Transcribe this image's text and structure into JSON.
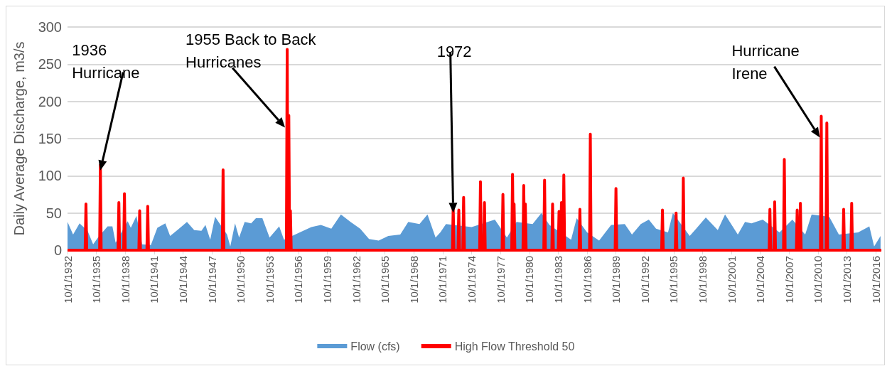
{
  "chart_data": {
    "type": "area",
    "ylabel": "Daily Average Discharge, m3/s",
    "ylim": [
      0,
      300
    ],
    "yticks": [
      0,
      50,
      100,
      150,
      200,
      250,
      300
    ],
    "grid": "y",
    "legend": "bottom",
    "marker": "none",
    "xlim": [
      "1932-10",
      "2017-05"
    ],
    "xticks": [
      {
        "value": "1932-10-01",
        "label": "10/1/1932"
      },
      {
        "value": "1935-10-01",
        "label": "10/1/1935"
      },
      {
        "value": "1938-10-01",
        "label": "10/1/1938"
      },
      {
        "value": "1941-10-01",
        "label": "10/1/1941"
      },
      {
        "value": "1944-10-01",
        "label": "10/1/1944"
      },
      {
        "value": "1947-10-01",
        "label": "10/1/1947"
      },
      {
        "value": "1950-10-01",
        "label": "10/1/1950"
      },
      {
        "value": "1953-10-01",
        "label": "10/1/1953"
      },
      {
        "value": "1956-10-01",
        "label": "10/1/1956"
      },
      {
        "value": "1959-10-01",
        "label": "10/1/1959"
      },
      {
        "value": "1962-10-01",
        "label": "10/1/1962"
      },
      {
        "value": "1965-10-01",
        "label": "10/1/1965"
      },
      {
        "value": "1968-10-01",
        "label": "10/1/1968"
      },
      {
        "value": "1971-10-01",
        "label": "10/1/1971"
      },
      {
        "value": "1974-10-01",
        "label": "10/1/1974"
      },
      {
        "value": "1977-10-01",
        "label": "10/1/1977"
      },
      {
        "value": "1980-10-01",
        "label": "10/1/1980"
      },
      {
        "value": "1983-10-01",
        "label": "10/1/1983"
      },
      {
        "value": "1986-10-01",
        "label": "10/1/1986"
      },
      {
        "value": "1989-10-01",
        "label": "10/1/1989"
      },
      {
        "value": "1992-10-01",
        "label": "10/1/1992"
      },
      {
        "value": "1995-10-01",
        "label": "10/1/1995"
      },
      {
        "value": "1998-10-01",
        "label": "10/1/1998"
      },
      {
        "value": "2001-10-01",
        "label": "10/1/2001"
      },
      {
        "value": "2004-10-01",
        "label": "10/1/2004"
      },
      {
        "value": "2007-10-01",
        "label": "10/1/2007"
      },
      {
        "value": "2010-10-01",
        "label": "10/1/2010"
      },
      {
        "value": "2013-10-01",
        "label": "10/1/2013"
      },
      {
        "value": "2016-10-01",
        "label": "10/1/2016"
      }
    ],
    "series": [
      {
        "name": "Flow (cfs)",
        "color": "#5b9bd5",
        "x": [
          "1932-10",
          "1933-05",
          "1934-01",
          "1934-11",
          "1935-06",
          "1935-12",
          "1936-12",
          "1937-06",
          "1937-10",
          "1939-01",
          "1939-05",
          "1939-12",
          "1940-07",
          "1941-06",
          "1942-02",
          "1942-12",
          "1943-06",
          "1944-03",
          "1945-03",
          "1945-12",
          "1946-09",
          "1947-02",
          "1947-08",
          "1948-02",
          "1949-05",
          "1949-09",
          "1950-03",
          "1950-08",
          "1951-03",
          "1951-11",
          "1952-05",
          "1953-01",
          "1953-10",
          "1954-10",
          "1955-04",
          "1956-02",
          "1957-02",
          "1958-02",
          "1959-02",
          "1960-03",
          "1961-03",
          "1962-03",
          "1963-03",
          "1964-02",
          "1965-02",
          "1966-02",
          "1967-05",
          "1968-03",
          "1969-05",
          "1970-03",
          "1971-01",
          "1971-07",
          "1972-02",
          "1974-10",
          "1977-03",
          "1978-06",
          "1979-06",
          "1981-02",
          "1982-01",
          "1982-11",
          "1985-02",
          "1985-09",
          "1986-10",
          "1988-01",
          "1988-11",
          "1989-04",
          "1990-09",
          "1991-06",
          "1992-05",
          "1993-03",
          "1993-12",
          "1995-03",
          "1995-09",
          "1997-06",
          "1998-02",
          "1999-02",
          "2000-05",
          "2001-02",
          "2002-06",
          "2003-03",
          "2003-11",
          "2005-01",
          "2006-10",
          "2008-02",
          "2009-06",
          "2010-02",
          "2011-12",
          "2012-12",
          "2014-12",
          "2016-02",
          "2016-08",
          "2017-04"
        ],
        "values": [
          38,
          21,
          36,
          26,
          8,
          17,
          32,
          32,
          10,
          39,
          30,
          46,
          8,
          7,
          30,
          36,
          19,
          27,
          38,
          27,
          26,
          34,
          14,
          45,
          21,
          5,
          36,
          17,
          38,
          36,
          43,
          43,
          17,
          32,
          14,
          19,
          25,
          31,
          34,
          29,
          48,
          38,
          29,
          15,
          13,
          19,
          21,
          38,
          35,
          48,
          17,
          24,
          35,
          31,
          41,
          17,
          38,
          35,
          50,
          34,
          14,
          43,
          24,
          13,
          27,
          34,
          35,
          21,
          35,
          41,
          29,
          24,
          50,
          19,
          29,
          44,
          27,
          48,
          21,
          38,
          36,
          41,
          24,
          41,
          21,
          48,
          45,
          21,
          24,
          32,
          5,
          19
        ]
      },
      {
        "name": "High Flow Threshold 50",
        "type": "line",
        "color": "#ff0000",
        "x": [
          "1932-10",
          "1934-08",
          "1934-09",
          "1934-10",
          "1936-02",
          "1936-03",
          "1936-04",
          "1938-01",
          "1938-02",
          "1938-03",
          "1938-08",
          "1938-09",
          "1938-10",
          "1940-03",
          "1940-04",
          "1940-05",
          "1941-01",
          "1941-02",
          "1941-03",
          "1948-11",
          "1948-12",
          "1949-01",
          "1955-07",
          "1955-08",
          "1955-09",
          "1955-10",
          "1955-11",
          "1955-12",
          "1956-01",
          "1972-10",
          "1972-11",
          "1972-12",
          "1973-05",
          "1973-06",
          "1973-07",
          "1973-11",
          "1973-12",
          "1974-01",
          "1975-08",
          "1975-09",
          "1975-10",
          "1976-01",
          "1976-02",
          "1976-03",
          "1977-12",
          "1978-01",
          "1978-02",
          "1978-12",
          "1979-01",
          "1979-02",
          "1979-03",
          "1979-04",
          "1980-02",
          "1980-03",
          "1980-04",
          "1980-05",
          "1980-06",
          "1982-04",
          "1982-05",
          "1982-06",
          "1983-02",
          "1983-03",
          "1983-04",
          "1983-10",
          "1983-11",
          "1983-12",
          "1984-01",
          "1984-02",
          "1984-03",
          "1984-04",
          "1984-05",
          "1984-06",
          "1985-12",
          "1986-01",
          "1986-02",
          "1987-01",
          "1987-02",
          "1987-03",
          "1989-09",
          "1989-10",
          "1989-11",
          "1994-07",
          "1994-08",
          "1994-09",
          "1995-12",
          "1996-01",
          "1996-02",
          "1996-09",
          "1996-10",
          "1996-11",
          "2005-09",
          "2005-10",
          "2005-11",
          "2006-03",
          "2006-04",
          "2006-05",
          "2007-03",
          "2007-04",
          "2007-05",
          "2008-07",
          "2008-08",
          "2008-09",
          "2008-11",
          "2008-12",
          "2009-01",
          "2011-01",
          "2011-02",
          "2011-03",
          "2011-08",
          "2011-09",
          "2011-10",
          "2013-05",
          "2013-06",
          "2013-07",
          "2014-03",
          "2014-04",
          "2014-05",
          "2017-05"
        ],
        "values": [
          0,
          0,
          62,
          0,
          0,
          115,
          0,
          0,
          64,
          0,
          0,
          76,
          0,
          0,
          53,
          0,
          0,
          59,
          0,
          0,
          108,
          0,
          0,
          270,
          0,
          181,
          0,
          53,
          0,
          0,
          58,
          0,
          0,
          54,
          0,
          0,
          71,
          0,
          0,
          92,
          0,
          0,
          64,
          0,
          0,
          75,
          0,
          0,
          102,
          0,
          62,
          0,
          0,
          87,
          0,
          62,
          0,
          0,
          94,
          0,
          0,
          62,
          0,
          0,
          52,
          0,
          0,
          64,
          0,
          0,
          101,
          0,
          0,
          55,
          0,
          0,
          156,
          0,
          0,
          83,
          0,
          0,
          54,
          0,
          0,
          50,
          0,
          0,
          97,
          0,
          0,
          55,
          0,
          0,
          65,
          0,
          0,
          122,
          0,
          0,
          54,
          0,
          0,
          63,
          0,
          0,
          180,
          0,
          0,
          171,
          0,
          0,
          55,
          0,
          0,
          63,
          0,
          0
        ]
      }
    ],
    "annotations": [
      {
        "text": "1936\nHurricane",
        "x": "1936-03",
        "y": 115
      },
      {
        "text": "1955 Back to Back\nHurricanes",
        "x": "1955-08",
        "y": 270
      },
      {
        "text": "1972",
        "x": "1972-11",
        "y": 58
      },
      {
        "text": "Hurricane\nIrene",
        "x": "2011-02",
        "y": 180
      }
    ]
  }
}
